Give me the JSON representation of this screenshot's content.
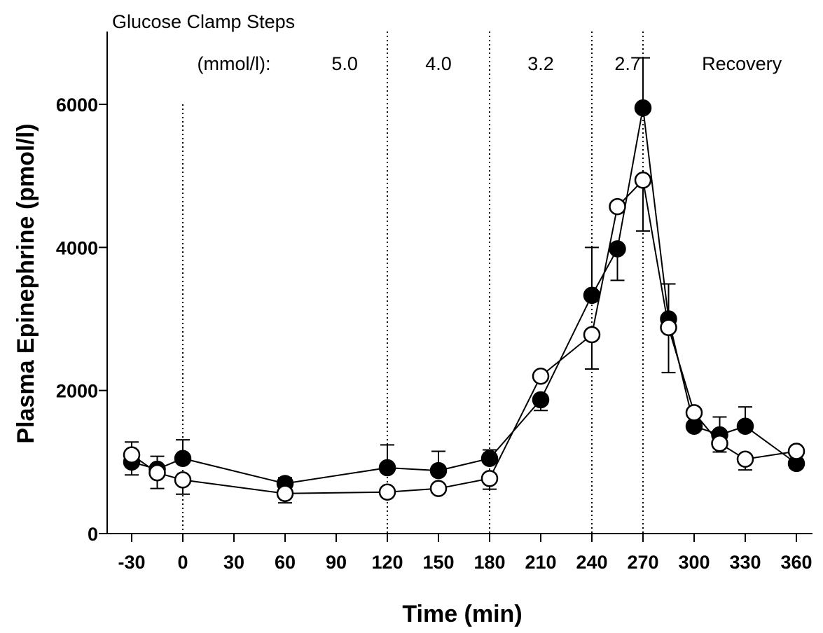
{
  "chart_data": {
    "type": "line",
    "title": "Glucose Clamp Steps",
    "xlabel": "Time (min)",
    "ylabel": "Plasma Epinephrine (pmol/l)",
    "xlim": [
      -35,
      365
    ],
    "ylim": [
      0,
      6000
    ],
    "x_ticks": [
      -30,
      0,
      30,
      60,
      90,
      120,
      150,
      180,
      210,
      240,
      270,
      300,
      330,
      360
    ],
    "y_ticks": [
      0,
      2000,
      4000,
      6000
    ],
    "step_boundaries": [
      0,
      120,
      180,
      240,
      270
    ],
    "step_labels": [
      {
        "text": "(mmol/l):",
        "x": 30
      },
      {
        "text": "5.0",
        "x": 95
      },
      {
        "text": "4.0",
        "x": 150
      },
      {
        "text": "3.2",
        "x": 210
      },
      {
        "text": "2.7",
        "x": 261
      },
      {
        "text": "Recovery",
        "x": 328
      }
    ],
    "series": [
      {
        "marker": "filled",
        "x": [
          -30,
          -15,
          0,
          60,
          120,
          150,
          180,
          210,
          240,
          255,
          270,
          285,
          300,
          315,
          330,
          360
        ],
        "values": [
          1000,
          900,
          1050,
          700,
          920,
          880,
          1050,
          1870,
          3330,
          3980,
          5950,
          3000,
          1500,
          1380,
          1500,
          980
        ],
        "error_up": [
          280,
          180,
          260,
          80,
          320,
          270,
          120,
          0,
          670,
          0,
          700,
          490,
          0,
          250,
          270,
          0
        ],
        "error_down": [
          180,
          0,
          0,
          0,
          0,
          0,
          0,
          150,
          0,
          440,
          0,
          0,
          0,
          0,
          0,
          70
        ]
      },
      {
        "marker": "open",
        "x": [
          -30,
          -15,
          0,
          60,
          120,
          150,
          180,
          210,
          240,
          255,
          270,
          285,
          300,
          315,
          330,
          360
        ],
        "values": [
          1100,
          850,
          750,
          560,
          580,
          630,
          770,
          2200,
          2780,
          4570,
          4940,
          2880,
          1690,
          1260,
          1040,
          1150
        ],
        "error_up": [
          0,
          0,
          0,
          0,
          0,
          0,
          0,
          0,
          0,
          0,
          0,
          0,
          0,
          0,
          0,
          0
        ],
        "error_down": [
          0,
          220,
          200,
          130,
          0,
          0,
          150,
          0,
          480,
          0,
          710,
          630,
          0,
          120,
          150,
          0
        ]
      }
    ]
  }
}
